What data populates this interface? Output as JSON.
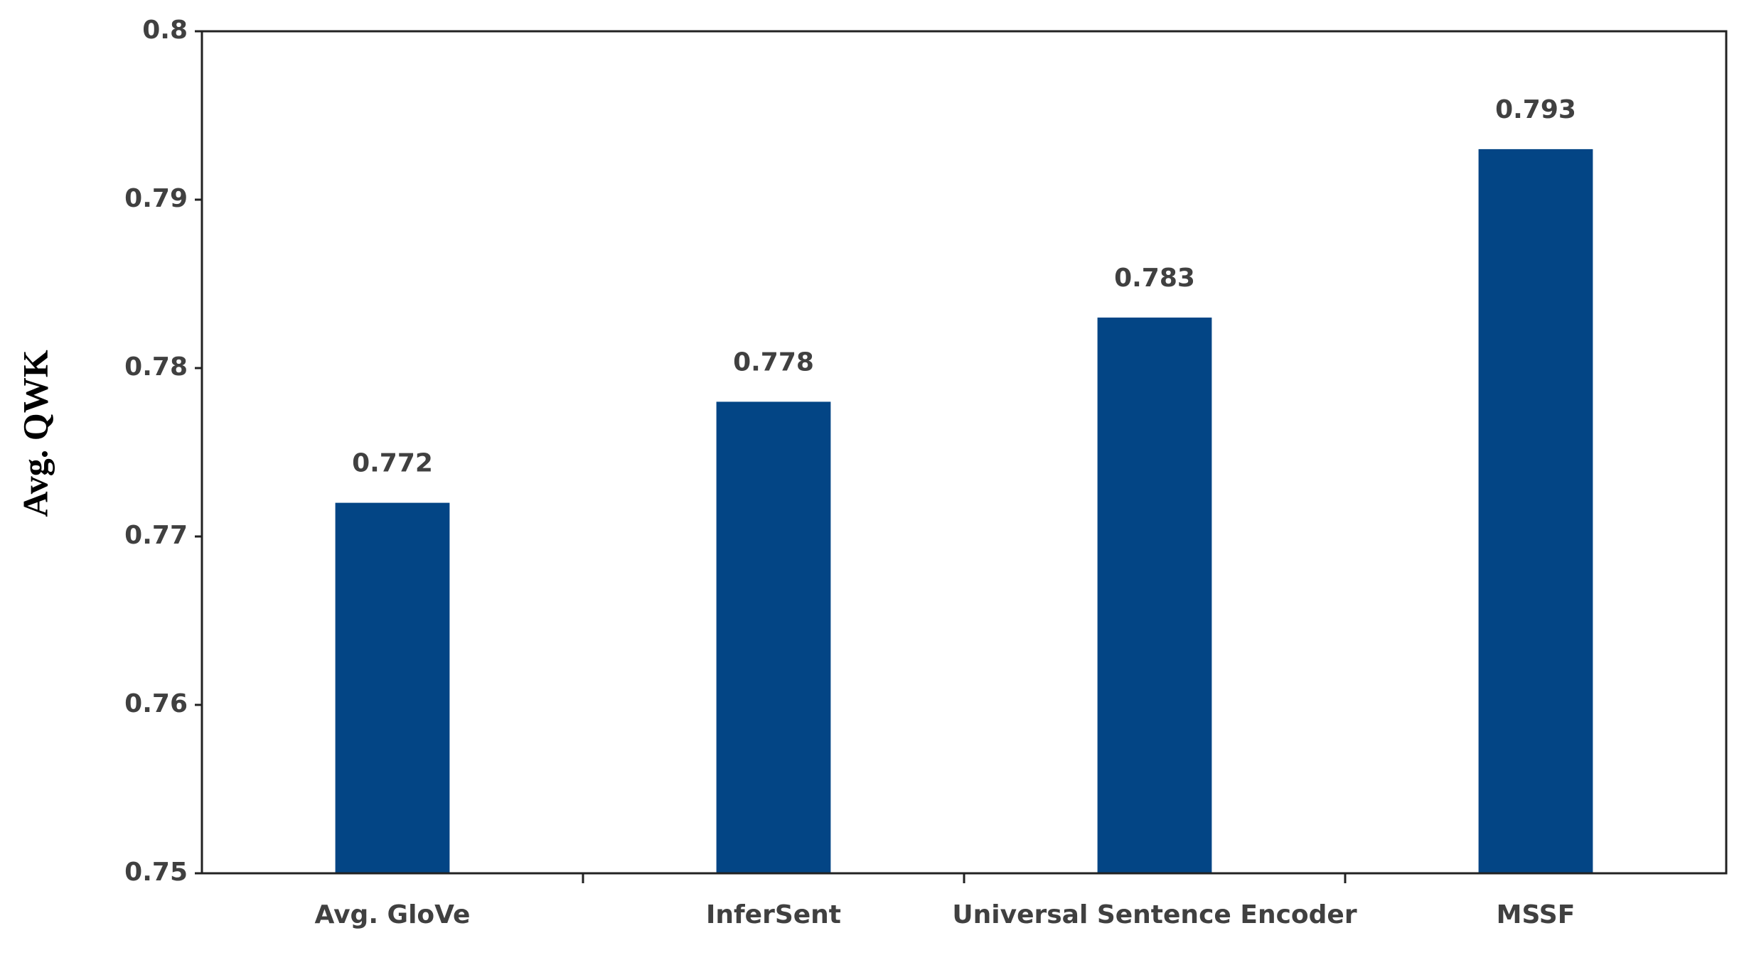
{
  "chart_data": {
    "type": "bar",
    "y_label": "Avg. QWK",
    "categories": [
      "Avg. GloVe",
      "InferSent",
      "Universal Sentence Encoder",
      "MSSF"
    ],
    "values": [
      0.772,
      0.778,
      0.783,
      0.793
    ],
    "color": "#034585",
    "ylim": [
      0.75,
      0.8
    ],
    "yticks": [
      0.75,
      0.76,
      0.77,
      0.78,
      0.79,
      0.8
    ],
    "grid": false
  }
}
